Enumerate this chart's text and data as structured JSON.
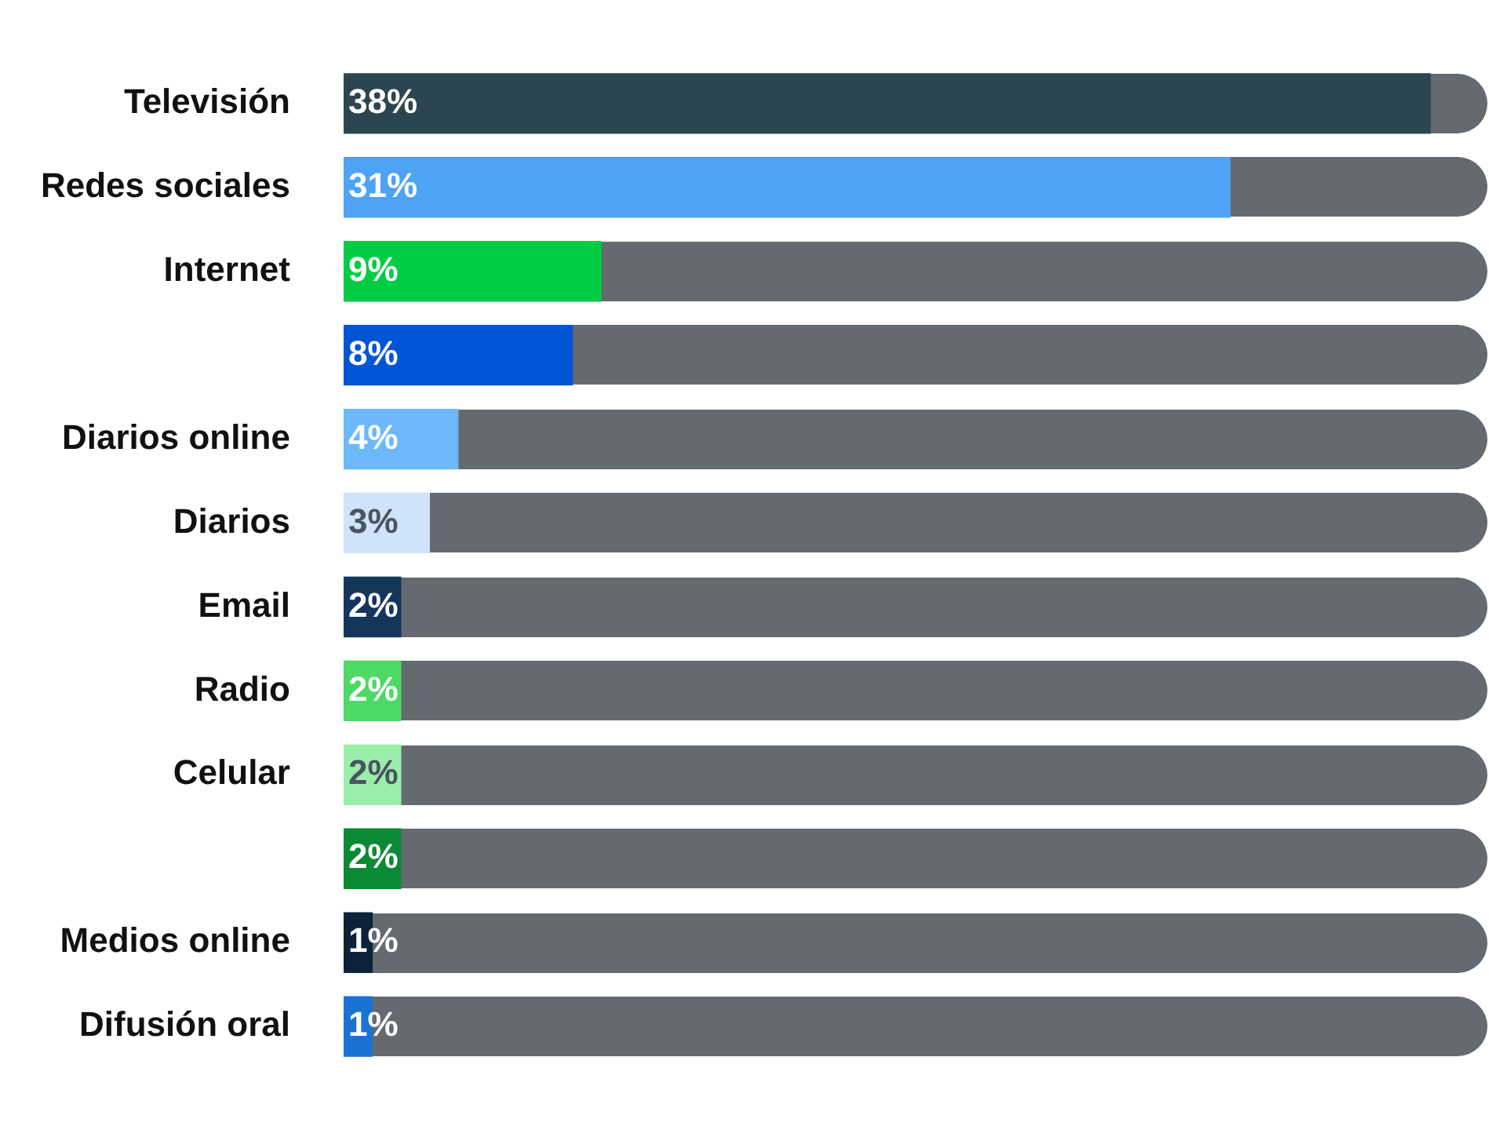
{
  "chart_data": {
    "type": "bar",
    "orientation": "horizontal",
    "categories": [
      "Televisión",
      "Redes sociales",
      "Internet",
      null,
      "Diarios online",
      "Diarios",
      "Email",
      "Radio",
      "Celular",
      null,
      "Medios online",
      "Difusión oral"
    ],
    "values": [
      38,
      31,
      9,
      8,
      4,
      3,
      2,
      2,
      2,
      2,
      1,
      1
    ],
    "value_labels": [
      "38%",
      "31%",
      "9%",
      "8%",
      "4%",
      "3%",
      "2%",
      "2%",
      "2%",
      "2%",
      "1%",
      "1%"
    ],
    "colors": [
      "#2b4650",
      "#4fa3f7",
      "#00cc44",
      "#0055d4",
      "#6cb8fb",
      "#cfe3fb",
      "#14365a",
      "#4cd964",
      "#99eeaa",
      "#0b8a34",
      "#0c2238",
      "#1a73d4"
    ],
    "legend": false
  }
}
